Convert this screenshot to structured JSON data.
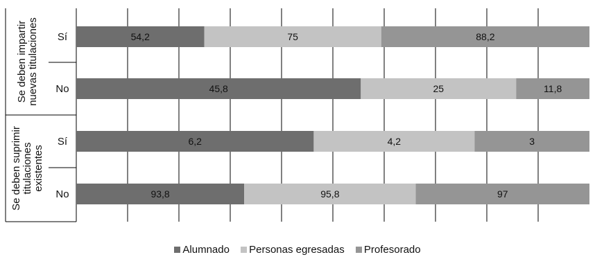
{
  "chart_data": {
    "type": "bar",
    "stacked": true,
    "orientation": "horizontal",
    "groups": [
      {
        "label": "Se deben impartir nuevas titulaciones",
        "label_lines": [
          "Se deben impartir",
          "nuevas titulaciones"
        ],
        "rows": [
          {
            "label": "Sí",
            "values": [
              54.2,
              75,
              88.2
            ]
          },
          {
            "label": "No",
            "values": [
              45.8,
              25,
              11.8
            ]
          }
        ]
      },
      {
        "label": "Se deben suprimir titulaciones existentes",
        "label_lines": [
          "Se deben suprimir",
          "titulaciones",
          "existentes"
        ],
        "rows": [
          {
            "label": "Sí",
            "values": [
              6.2,
              4.2,
              3
            ]
          },
          {
            "label": "No",
            "values": [
              93.8,
              95.8,
              97
            ]
          }
        ]
      }
    ],
    "series": [
      {
        "name": "Alumnado",
        "color": "#6e6e6e"
      },
      {
        "name": "Personas egresadas",
        "color": "#c3c3c3"
      },
      {
        "name": "Profesorado",
        "color": "#959595"
      }
    ],
    "grid": true,
    "legend": "bottom"
  }
}
